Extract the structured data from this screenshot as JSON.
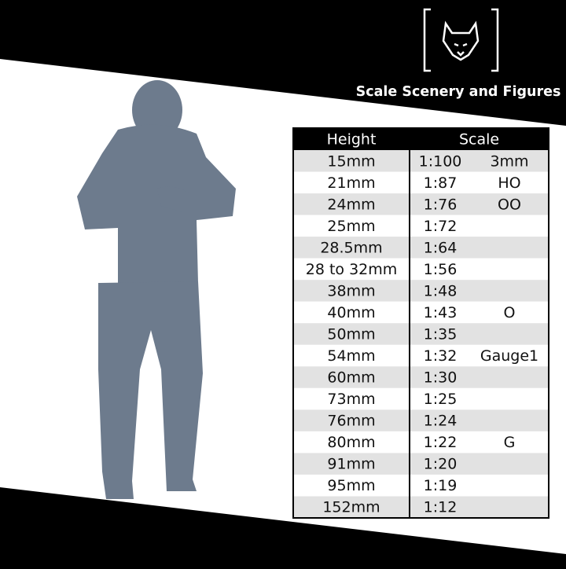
{
  "brand": {
    "name": "Scale Scenery and Figures"
  },
  "table": {
    "header": [
      "Height",
      "Scale"
    ],
    "rows": [
      {
        "height": "15mm",
        "ratio": "1:100",
        "gauge": "3mm"
      },
      {
        "height": "21mm",
        "ratio": "1:87",
        "gauge": "HO"
      },
      {
        "height": "24mm",
        "ratio": "1:76",
        "gauge": "OO"
      },
      {
        "height": "25mm",
        "ratio": "1:72"
      },
      {
        "height": "28.5mm",
        "ratio": "1:64"
      },
      {
        "height": "28 to 32mm",
        "ratio": "1:56"
      },
      {
        "height": "38mm",
        "ratio": "1:48"
      },
      {
        "height": "40mm",
        "ratio": "1:43",
        "gauge": "O"
      },
      {
        "height": "50mm",
        "ratio": "1:35"
      },
      {
        "height": "54mm",
        "ratio": "1:32",
        "gauge": "Gauge1"
      },
      {
        "height": "60mm",
        "ratio": "1:30"
      },
      {
        "height": "73mm",
        "ratio": "1:25"
      },
      {
        "height": "76mm",
        "ratio": "1:24"
      },
      {
        "height": "80mm",
        "ratio": "1:22",
        "gauge": "G"
      },
      {
        "height": "91mm",
        "ratio": "1:20"
      },
      {
        "height": "95mm",
        "ratio": "1:19"
      },
      {
        "height": "152mm",
        "ratio": "1:12"
      }
    ]
  }
}
